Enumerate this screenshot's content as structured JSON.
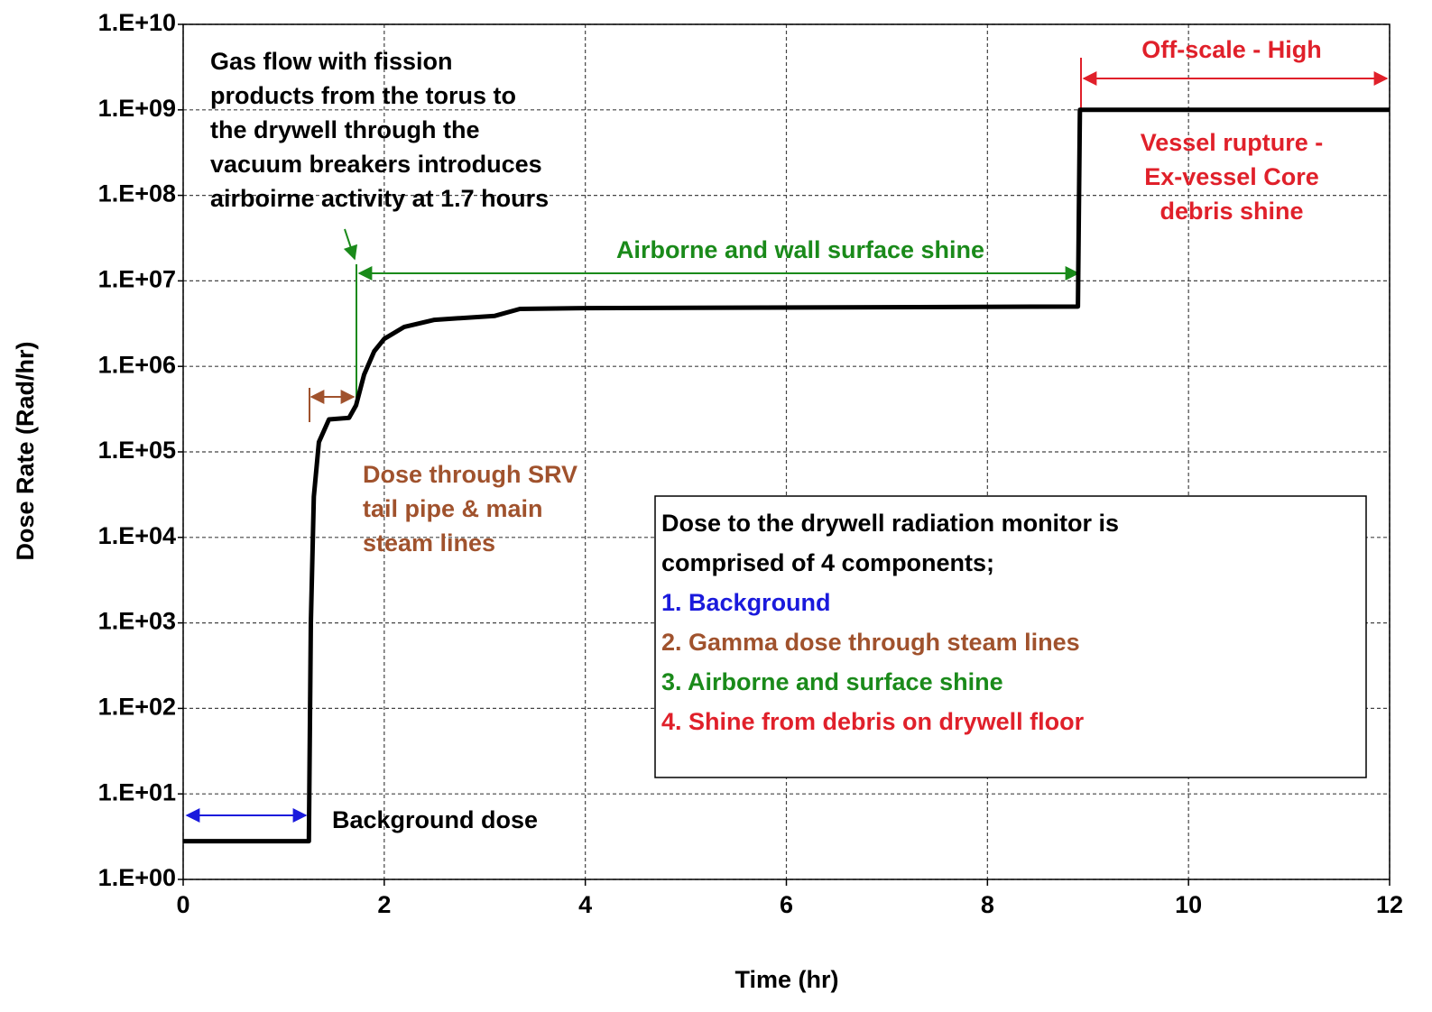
{
  "chart_data": {
    "type": "line",
    "xlabel": "Time (hr)",
    "ylabel": "Dose Rate (Rad/hr)",
    "x": [
      0,
      1.25,
      1.27,
      1.3,
      1.35,
      1.45,
      1.65,
      1.72,
      1.8,
      1.9,
      2.0,
      2.2,
      2.5,
      3.1,
      3.35,
      4,
      8.9,
      8.92,
      12
    ],
    "values": [
      2.8,
      2.8,
      1000,
      30000,
      130000,
      240000,
      250000,
      350000,
      800000,
      1500000,
      2100000,
      2900000,
      3500000,
      3900000,
      4700000,
      4800000,
      5000000,
      1000000000,
      1000000000
    ],
    "color": "#000000",
    "xlim": [
      0,
      12
    ],
    "xticks": [
      0,
      2,
      4,
      6,
      8,
      10,
      12
    ],
    "ylim": [
      1,
      10000000000
    ],
    "ylog": true,
    "yticks": [
      {
        "value": 1,
        "label": "1.E+00"
      },
      {
        "value": 10,
        "label": "1.E+01"
      },
      {
        "value": 100,
        "label": "1.E+02"
      },
      {
        "value": 1000,
        "label": "1.E+03"
      },
      {
        "value": 10000,
        "label": "1.E+04"
      },
      {
        "value": 100000,
        "label": "1.E+05"
      },
      {
        "value": 1000000,
        "label": "1.E+06"
      },
      {
        "value": 10000000,
        "label": "1.E+07"
      },
      {
        "value": 100000000,
        "label": "1.E+08"
      },
      {
        "value": 1000000000,
        "label": "1.E+09"
      },
      {
        "value": 10000000000,
        "label": "1.E+10"
      }
    ],
    "grid": true,
    "annotations": {
      "gas_flow": {
        "color": "#000000",
        "lines": [
          "Gas flow with fission",
          "products from the torus to",
          "the drywell through the",
          "vacuum breakers introduces",
          "airboirne activity at 1.7 hours"
        ]
      },
      "off_scale": {
        "color": "#e0202a",
        "lines": [
          "Off-scale - High"
        ]
      },
      "vessel": {
        "color": "#e0202a",
        "lines": [
          "Vessel rupture -",
          "Ex-vessel Core",
          "debris shine"
        ]
      },
      "airborne": {
        "color": "#1a8a1a",
        "lines": [
          "Airborne and wall surface shine"
        ]
      },
      "srv": {
        "color": "#a0522d",
        "lines": [
          "Dose through SRV",
          "tail pipe & main",
          "steam lines"
        ]
      },
      "background": {
        "color": "#000000",
        "lines": [
          "Background dose"
        ]
      }
    },
    "note": {
      "lines": [
        "Dose to the drywell radiation monitor is",
        "comprised of 4 components;"
      ],
      "items": [
        {
          "text": "1. Background",
          "color": "#1a1adc"
        },
        {
          "text": "2. Gamma dose through steam lines",
          "color": "#a0522d"
        },
        {
          "text": "3. Airborne and surface shine",
          "color": "#1a8a1a"
        },
        {
          "text": "4. Shine from debris on drywell floor",
          "color": "#e0202a"
        }
      ]
    }
  }
}
